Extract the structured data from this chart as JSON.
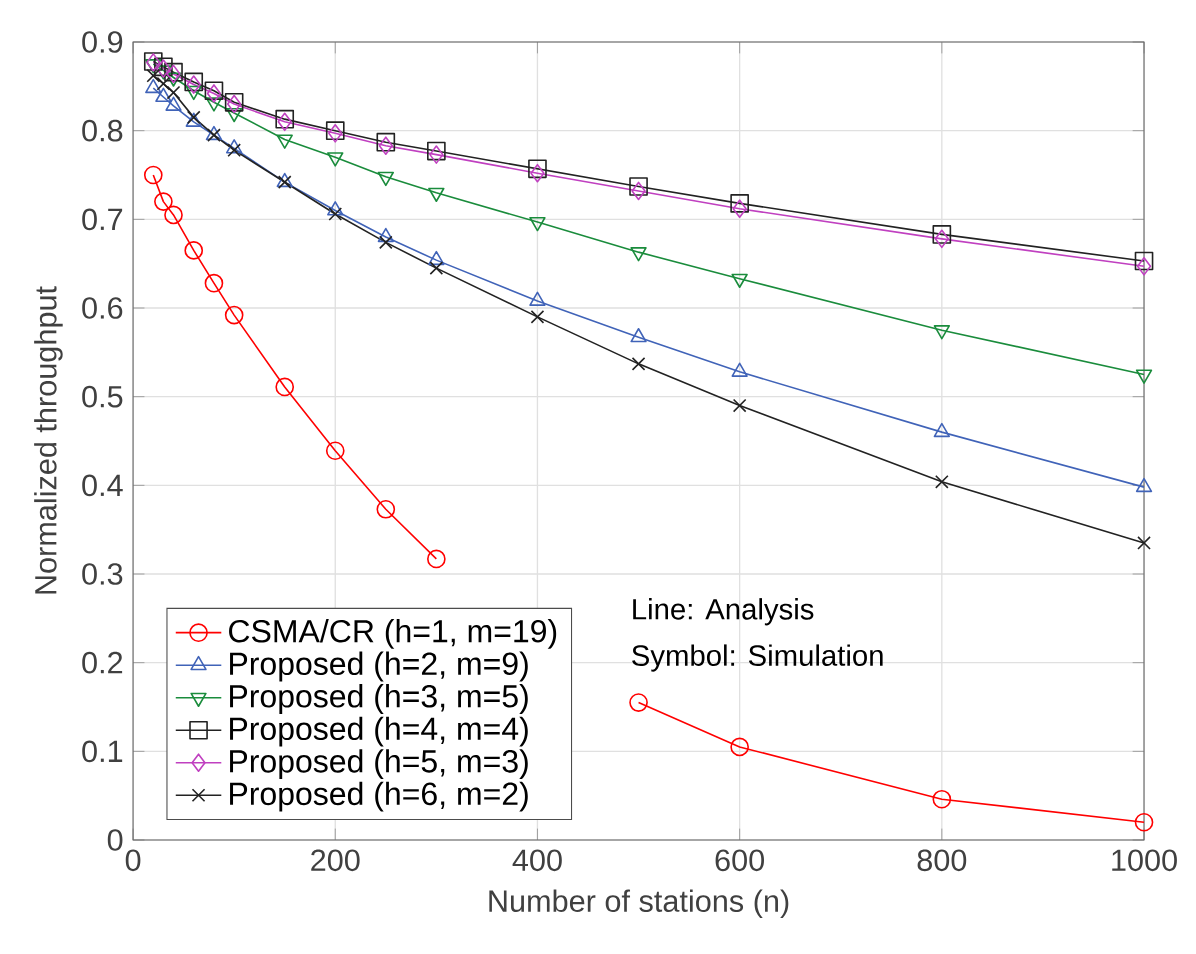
{
  "chart_data": {
    "type": "line",
    "xlabel": "Number of stations (n)",
    "ylabel": "Normalized throughput",
    "x": [
      20,
      30,
      40,
      60,
      80,
      100,
      150,
      200,
      250,
      300,
      400,
      500,
      600,
      800,
      1000
    ],
    "xlim": [
      0,
      1000
    ],
    "xticks": [
      0,
      200,
      400,
      600,
      800,
      1000
    ],
    "ylim": [
      0,
      0.9
    ],
    "yticks": [
      0,
      0.1,
      0.2,
      0.3,
      0.4,
      0.5,
      0.6,
      0.7,
      0.8,
      0.9
    ],
    "grid": true,
    "legend": "bottom left",
    "line_style": "solid",
    "annotations": [
      "Line: Analysis",
      "Symbol: Simulation"
    ],
    "series": [
      {
        "name": "CSMA/CR (h=1, m=19)",
        "color": "#ff0000",
        "marker": "circle",
        "values": [
          0.75,
          0.72,
          0.705,
          0.665,
          0.628,
          0.592,
          0.511,
          0.439,
          0.373,
          0.317,
          null,
          0.155,
          0.105,
          0.046,
          0.02
        ]
      },
      {
        "name": "Proposed (h=2, m=9)",
        "color": "#4063b8",
        "marker": "triangle",
        "values": [
          0.848,
          0.838,
          0.828,
          0.81,
          0.795,
          0.78,
          0.742,
          0.71,
          0.68,
          0.654,
          0.608,
          0.567,
          0.528,
          0.46,
          0.398
        ]
      },
      {
        "name": "Proposed (h=3, m=5)",
        "color": "#1a8c3c",
        "marker": "triangle-down",
        "values": [
          0.875,
          0.868,
          0.86,
          0.845,
          0.832,
          0.82,
          0.79,
          0.77,
          0.748,
          0.73,
          0.697,
          0.663,
          0.633,
          0.575,
          0.525
        ]
      },
      {
        "name": "Proposed (h=4, m=4)",
        "color": "#222222",
        "marker": "square",
        "values": [
          0.878,
          0.872,
          0.866,
          0.855,
          0.845,
          0.832,
          0.813,
          0.8,
          0.787,
          0.777,
          0.757,
          0.737,
          0.718,
          0.683,
          0.653
        ]
      },
      {
        "name": "Proposed (h=5, m=3)",
        "color": "#c040c0",
        "marker": "diamond",
        "values": [
          0.877,
          0.87,
          0.864,
          0.852,
          0.842,
          0.83,
          0.81,
          0.797,
          0.783,
          0.773,
          0.752,
          0.732,
          0.712,
          0.678,
          0.647
        ]
      },
      {
        "name": "Proposed (h=6, m=2)",
        "color": "#222222",
        "marker": "cross",
        "values": [
          0.862,
          0.853,
          0.843,
          0.815,
          0.795,
          0.778,
          0.742,
          0.706,
          0.674,
          0.645,
          0.59,
          0.537,
          0.49,
          0.404,
          0.335
        ]
      }
    ]
  }
}
